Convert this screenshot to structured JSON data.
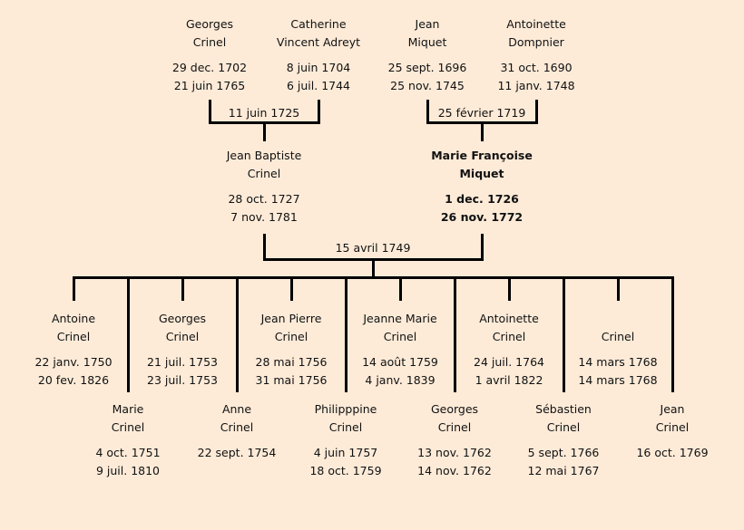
{
  "grandparents": [
    {
      "first": "Georges",
      "last": "Crinel",
      "birth": "29 dec. 1702",
      "death": "21 juin 1765"
    },
    {
      "first": "Catherine",
      "last": "Vincent Adreyt",
      "birth": "8 juin 1704",
      "death": "6 juil. 1744"
    },
    {
      "first": "Jean",
      "last": "Miquet",
      "birth": "25 sept. 1696",
      "death": "25 nov. 1745"
    },
    {
      "first": "Antoinette",
      "last": "Dompnier",
      "birth": "31 oct. 1690",
      "death": "11 janv. 1748"
    }
  ],
  "grandparent_marriages": [
    "11 juin 1725",
    "25 février 1719"
  ],
  "parents": [
    {
      "first": "Jean Baptiste",
      "last": "Crinel",
      "birth": "28 oct. 1727",
      "death": "7 nov. 1781",
      "highlighted": false
    },
    {
      "first": "Marie Françoise",
      "last": "Miquet",
      "birth": "1 dec. 1726",
      "death": "26 nov. 1772",
      "highlighted": true
    }
  ],
  "parent_marriage": "15 avril 1749",
  "children": [
    {
      "first": "Antoine",
      "last": "Crinel",
      "birth": "22 janv. 1750",
      "death": "20 fev. 1826"
    },
    {
      "first": "Marie",
      "last": "Crinel",
      "birth": "4 oct. 1751",
      "death": "9 juil. 1810"
    },
    {
      "first": "Georges",
      "last": "Crinel",
      "birth": "21 juil. 1753",
      "death": "23 juil. 1753"
    },
    {
      "first": "Anne",
      "last": "Crinel",
      "birth": "22 sept. 1754",
      "death": ""
    },
    {
      "first": "Jean Pierre",
      "last": "Crinel",
      "birth": "28 mai 1756",
      "death": "31 mai 1756"
    },
    {
      "first": "Philipppine",
      "last": "Crinel",
      "birth": "4 juin 1757",
      "death": "18 oct. 1759"
    },
    {
      "first": "Jeanne Marie",
      "last": "Crinel",
      "birth": "14 août 1759",
      "death": "4 janv. 1839"
    },
    {
      "first": "Georges",
      "last": "Crinel",
      "birth": "13 nov. 1762",
      "death": "14 nov. 1762"
    },
    {
      "first": "Antoinette",
      "last": "Crinel",
      "birth": "24 juil. 1764",
      "death": "1 avril 1822"
    },
    {
      "first": "Sébastien",
      "last": "Crinel",
      "birth": "5 sept. 1766",
      "death": "12 mai 1767"
    },
    {
      "first": "",
      "last": "Crinel",
      "birth": "14 mars 1768",
      "death": "14 mars 1768"
    },
    {
      "first": "Jean",
      "last": "Crinel",
      "birth": "16 oct. 1769",
      "death": ""
    }
  ]
}
